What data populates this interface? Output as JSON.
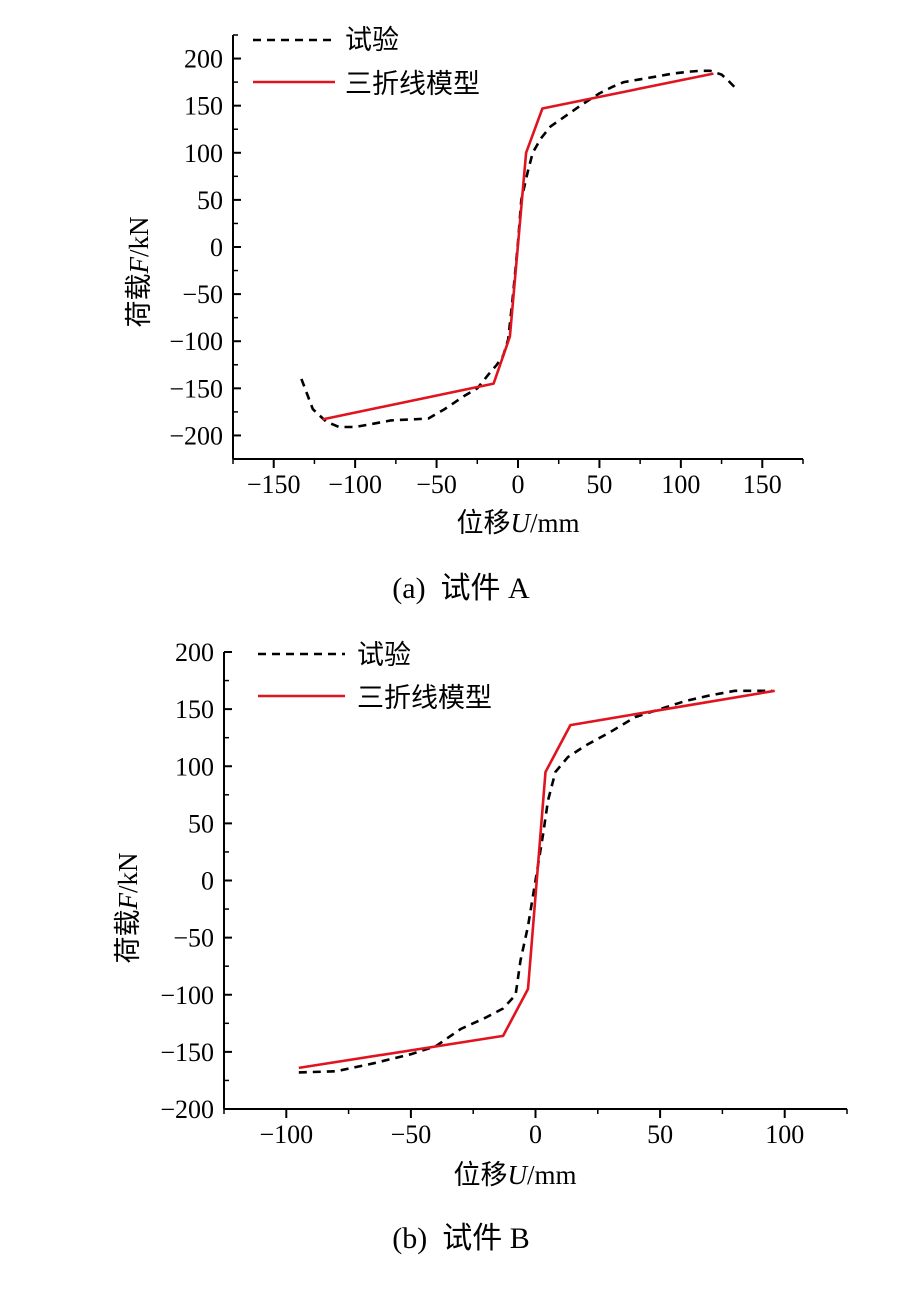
{
  "chart_data": [
    {
      "type": "line",
      "caption": "(a)  试件 A",
      "xlabel_prefix": "位移",
      "xlabel_var": "U",
      "xlabel_unit": "/mm",
      "ylabel_prefix": "荷载",
      "ylabel_var": "F",
      "ylabel_unit": "/kN",
      "xlim": [
        -175,
        175
      ],
      "ylim": [
        -225,
        225
      ],
      "xticks": [
        -150,
        -100,
        -50,
        0,
        50,
        100,
        150
      ],
      "xtick_labels": [
        "−150",
        "−100",
        "−50",
        "0",
        "50",
        "100",
        "150"
      ],
      "yticks": [
        -200,
        -150,
        -100,
        -50,
        0,
        50,
        100,
        150,
        200
      ],
      "ytick_labels": [
        "−200",
        "−150",
        "−100",
        "−50",
        "0",
        "50",
        "100",
        "150",
        "200"
      ],
      "legend": [
        "试验",
        "三折线模型"
      ],
      "series": [
        {
          "name": "试验",
          "style": "dashed",
          "color": "#000000",
          "points": [
            [
              -133,
              -140
            ],
            [
              -126,
              -172
            ],
            [
              -118,
              -185
            ],
            [
              -110,
              -191
            ],
            [
              -100,
              -191
            ],
            [
              -90,
              -188
            ],
            [
              -78,
              -184
            ],
            [
              -65,
              -183
            ],
            [
              -55,
              -182
            ],
            [
              -45,
              -172
            ],
            [
              -33,
              -158
            ],
            [
              -25,
              -150
            ],
            [
              -18,
              -135
            ],
            [
              -13,
              -125
            ],
            [
              -9,
              -115
            ],
            [
              -6,
              -98
            ],
            [
              -3,
              -50
            ],
            [
              0,
              5
            ],
            [
              2,
              50
            ],
            [
              6,
              80
            ],
            [
              9,
              100
            ],
            [
              14,
              115
            ],
            [
              20,
              128
            ],
            [
              30,
              140
            ],
            [
              40,
              152
            ],
            [
              50,
              163
            ],
            [
              58,
              170
            ],
            [
              65,
              175
            ],
            [
              75,
              178
            ],
            [
              85,
              181
            ],
            [
              95,
              184
            ],
            [
              105,
              186
            ],
            [
              112,
              187
            ],
            [
              118,
              187
            ],
            [
              125,
              183
            ],
            [
              130,
              175
            ],
            [
              134,
              168
            ]
          ]
        },
        {
          "name": "三折线模型",
          "style": "solid",
          "color": "#e0141e",
          "points": [
            [
              -120,
              -183
            ],
            [
              -15,
              -145
            ],
            [
              -5,
              -95
            ],
            [
              5,
              100
            ],
            [
              15,
              147
            ],
            [
              120,
              184
            ]
          ]
        }
      ]
    },
    {
      "type": "line",
      "caption": "(b)  试件 B",
      "xlabel_prefix": "位移",
      "xlabel_var": "U",
      "xlabel_unit": "/mm",
      "ylabel_prefix": "荷载",
      "ylabel_var": "F",
      "ylabel_unit": "/kN",
      "xlim": [
        -125,
        125
      ],
      "ylim": [
        -200,
        200
      ],
      "xticks": [
        -100,
        -50,
        0,
        50,
        100
      ],
      "xtick_labels": [
        "−100",
        "−50",
        "0",
        "50",
        "100"
      ],
      "yticks": [
        -200,
        -150,
        -100,
        -50,
        0,
        50,
        100,
        150,
        200
      ],
      "ytick_labels": [
        "−200",
        "−150",
        "−100",
        "−50",
        "0",
        "50",
        "100",
        "150",
        "200"
      ],
      "legend": [
        "试验",
        "三折线模型"
      ],
      "series": [
        {
          "name": "试验",
          "style": "dashed",
          "color": "#000000",
          "points": [
            [
              -95,
              -168
            ],
            [
              -80,
              -167
            ],
            [
              -65,
              -160
            ],
            [
              -50,
              -152
            ],
            [
              -40,
              -145
            ],
            [
              -30,
              -130
            ],
            [
              -20,
              -120
            ],
            [
              -13,
              -112
            ],
            [
              -8,
              -100
            ],
            [
              -6,
              -70
            ],
            [
              -3,
              -40
            ],
            [
              0,
              0
            ],
            [
              3,
              40
            ],
            [
              5,
              70
            ],
            [
              8,
              95
            ],
            [
              13,
              108
            ],
            [
              20,
              118
            ],
            [
              30,
              130
            ],
            [
              40,
              143
            ],
            [
              50,
              150
            ],
            [
              60,
              157
            ],
            [
              70,
              162
            ],
            [
              80,
              166
            ],
            [
              90,
              166
            ],
            [
              95,
              166
            ]
          ]
        },
        {
          "name": "三折线模型",
          "style": "solid",
          "color": "#e0141e",
          "points": [
            [
              -95,
              -164
            ],
            [
              -13,
              -136
            ],
            [
              -3,
              -95
            ],
            [
              4,
              95
            ],
            [
              14,
              136
            ],
            [
              96,
              166
            ]
          ]
        }
      ]
    }
  ]
}
